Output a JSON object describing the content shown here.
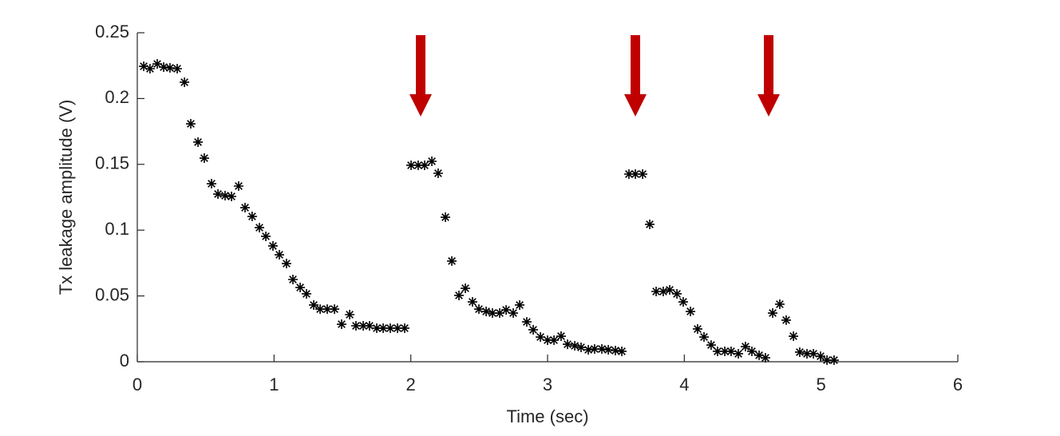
{
  "chart_data": {
    "type": "scatter",
    "xlabel": "Time (sec)",
    "ylabel": "Tx leakage amplitude (V)",
    "color": "#000000",
    "xlim": [
      0,
      6
    ],
    "xticks": [
      0,
      1,
      2,
      3,
      4,
      5,
      6
    ],
    "ylim": [
      0,
      0.25
    ],
    "yticks": [
      0,
      0.05,
      0.1,
      0.15,
      0.2,
      0.25
    ],
    "x": [
      0.047,
      0.093,
      0.146,
      0.193,
      0.239,
      0.292,
      0.345,
      0.391,
      0.444,
      0.49,
      0.543,
      0.59,
      0.642,
      0.689,
      0.741,
      0.788,
      0.84,
      0.893,
      0.94,
      0.992,
      1.039,
      1.091,
      1.138,
      1.191,
      1.237,
      1.29,
      1.337,
      1.389,
      1.442,
      1.494,
      1.553,
      1.599,
      1.652,
      1.698,
      1.751,
      1.798,
      1.85,
      1.903,
      1.955,
      2.002,
      2.054,
      2.101,
      2.154,
      2.2,
      2.253,
      2.3,
      2.352,
      2.399,
      2.451,
      2.498,
      2.551,
      2.597,
      2.65,
      2.697,
      2.749,
      2.796,
      2.848,
      2.895,
      2.948,
      3.0,
      3.047,
      3.099,
      3.146,
      3.199,
      3.245,
      3.298,
      3.344,
      3.397,
      3.444,
      3.496,
      3.543,
      3.595,
      3.642,
      3.695,
      3.747,
      3.794,
      3.846,
      3.893,
      3.946,
      3.992,
      4.045,
      4.097,
      4.144,
      4.196,
      4.243,
      4.296,
      4.342,
      4.395,
      4.447,
      4.494,
      4.547,
      4.593,
      4.646,
      4.698,
      4.745,
      4.798,
      4.844,
      4.897,
      4.944,
      4.996,
      5.043,
      5.095
    ],
    "values": [
      0.2245,
      0.2227,
      0.2263,
      0.2239,
      0.2233,
      0.2227,
      0.2124,
      0.1808,
      0.1669,
      0.1547,
      0.1353,
      0.1274,
      0.1262,
      0.1256,
      0.1335,
      0.1171,
      0.1104,
      0.1019,
      0.0953,
      0.088,
      0.0813,
      0.0746,
      0.0625,
      0.0564,
      0.0516,
      0.0431,
      0.04,
      0.04,
      0.04,
      0.0285,
      0.0358,
      0.0273,
      0.0273,
      0.0273,
      0.0255,
      0.0255,
      0.0255,
      0.0255,
      0.0255,
      0.1493,
      0.1493,
      0.1493,
      0.1523,
      0.1432,
      0.1098,
      0.0765,
      0.0504,
      0.0558,
      0.0455,
      0.04,
      0.0382,
      0.037,
      0.037,
      0.0394,
      0.037,
      0.0431,
      0.0303,
      0.0243,
      0.0188,
      0.0164,
      0.0164,
      0.0194,
      0.0133,
      0.0121,
      0.0109,
      0.0091,
      0.0097,
      0.0097,
      0.0091,
      0.0085,
      0.0079,
      0.1426,
      0.1426,
      0.1426,
      0.1044,
      0.0534,
      0.0534,
      0.0546,
      0.0516,
      0.0455,
      0.0382,
      0.0249,
      0.0188,
      0.0127,
      0.0079,
      0.0079,
      0.0079,
      0.0061,
      0.0115,
      0.0079,
      0.0049,
      0.003,
      0.037,
      0.0437,
      0.0316,
      0.0194,
      0.0073,
      0.0061,
      0.0061,
      0.0042,
      0.0012,
      0.0012
    ]
  }
}
